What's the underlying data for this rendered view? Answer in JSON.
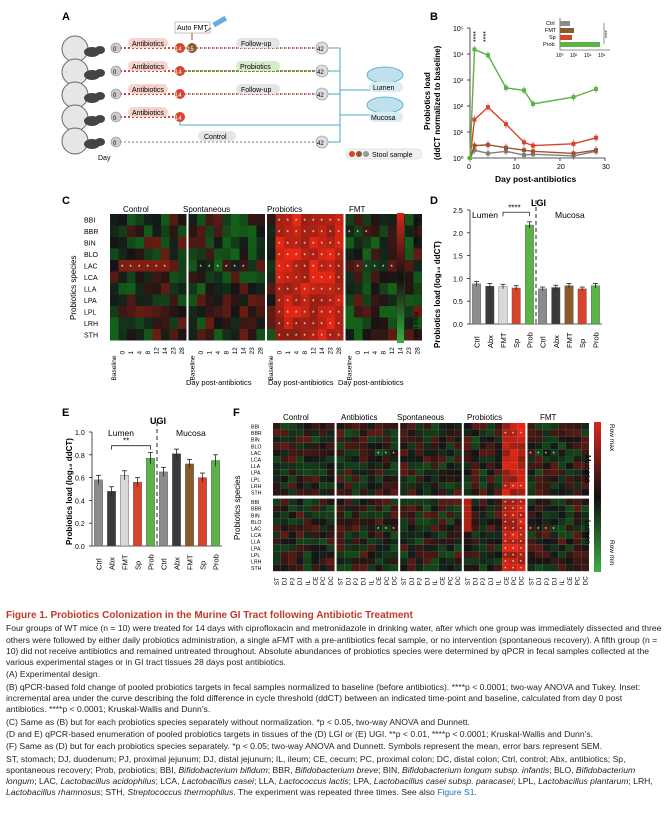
{
  "panels": {
    "A": {
      "label": "A",
      "auto_fmt": "Auto FMT",
      "antibiotics": "Antibiotics",
      "follow_up": "Follow-up",
      "probiotics": "Probiotics",
      "control": "Control",
      "day": "Day",
      "day_start": "0",
      "day_abx_end": "14",
      "day_fmt": "15",
      "day_end": "42",
      "lumen": "Lumen",
      "mucosa": "Mucosa",
      "stool_sample": "Stool sample"
    },
    "B": {
      "label": "B",
      "ylabel": "Probiotics load",
      "ylabel2": "(ddCT normalized to baseline)",
      "xlabel": "Day post-antibiotics",
      "yticks": [
        "10⁰",
        "10¹",
        "10²",
        "10³",
        "10⁴",
        "10⁵"
      ],
      "xticks": [
        "0",
        "10",
        "20",
        "30"
      ],
      "sig_a": "****",
      "sig_b": "****",
      "inset_labels": [
        "Ctrl",
        "FMT",
        "Sp",
        "Prob"
      ],
      "inset_xticks": [
        "10⁰",
        "10²",
        "10⁴",
        "10⁶"
      ],
      "inset_sig": "****"
    },
    "C": {
      "label": "C",
      "groups": [
        "Control",
        "Spontaneous",
        "Probiotics",
        "FMT"
      ],
      "species": [
        "BBI",
        "BBR",
        "BIN",
        "BLO",
        "LAC",
        "LCA",
        "LLA",
        "LPA",
        "LPL",
        "LRH",
        "STH"
      ],
      "ylabel": "Probiotics species",
      "baseline": "Baseline",
      "days": [
        "0",
        "1",
        "4",
        "8",
        "12",
        "14",
        "23",
        "28"
      ],
      "xlabel": "Day post-antibiotics",
      "row_max": "Row max",
      "row_min": "Row min"
    },
    "D": {
      "label": "D",
      "title": "LGI",
      "lumen": "Lumen",
      "mucosa": "Mucosa",
      "ylabel": "Probiotics load (log₁₀ ddCT)",
      "sig": "****",
      "yticks": [
        "0.0",
        "0.5",
        "1.0",
        "1.5",
        "2.0",
        "2.5"
      ],
      "categories": [
        "Ctrl",
        "Abx",
        "FMT",
        "Sp",
        "Prob",
        "Ctrl",
        "Abx",
        "FMT",
        "Sp",
        "Prob"
      ]
    },
    "E": {
      "label": "E",
      "title": "UGI",
      "lumen": "Lumen",
      "mucosa": "Mucosa",
      "ylabel": "Probiotics load (log₁₀ ddCT)",
      "sig": "**",
      "yticks": [
        "0.0",
        "0.2",
        "0.4",
        "0.6",
        "0.8",
        "1.0"
      ],
      "categories": [
        "Ctrl",
        "Abx",
        "FMT",
        "Sp",
        "Prob",
        "Ctrl",
        "Abx",
        "FMT",
        "Sp",
        "Prob"
      ]
    },
    "F": {
      "label": "F",
      "groups": [
        "Control",
        "Antibiotics",
        "Spontaneous",
        "Probiotics",
        "FMT"
      ],
      "species": [
        "BBI",
        "BBR",
        "BIN",
        "BLO",
        "LAC",
        "LCA",
        "LLA",
        "LPA",
        "LPL",
        "LRH",
        "STH"
      ],
      "ylabel": "Probiotics species",
      "tissues": [
        "ST",
        "DJ",
        "PJ",
        "DJ",
        "IL",
        "CE",
        "PC",
        "DC"
      ],
      "mucosa": "Mucosa",
      "lumen": "Lumen",
      "row_max": "Row max",
      "row_min": "Row min"
    }
  },
  "chart_data": [
    {
      "panel": "B",
      "type": "line",
      "title": "",
      "xlabel": "Day post-antibiotics",
      "ylabel": "Probiotics load (ddCT normalized to baseline)",
      "yscale": "log",
      "xlim": [
        0,
        30
      ],
      "ylim": [
        1,
        100000
      ],
      "x": [
        0,
        1,
        4,
        8,
        12,
        14,
        23,
        28
      ],
      "series": [
        {
          "name": "Probiotics",
          "color": "#5bb246",
          "values": [
            1,
            15000,
            9000,
            500,
            400,
            120,
            220,
            450
          ]
        },
        {
          "name": "FMT",
          "color": "#d9432b",
          "values": [
            1,
            30,
            90,
            20,
            4,
            3,
            3.5,
            6
          ]
        },
        {
          "name": "Spontaneous",
          "color": "#a0522d",
          "values": [
            1,
            3,
            3.2,
            2.5,
            2,
            1.8,
            1.5,
            2
          ]
        },
        {
          "name": "Control",
          "color": "#7f7f7f",
          "values": [
            1,
            2,
            1.5,
            1.8,
            1.3,
            1.4,
            1.2,
            1.8
          ]
        }
      ]
    },
    {
      "panel": "D",
      "type": "bar",
      "title": "LGI",
      "ylabel": "Probiotics load (log10 ddCT)",
      "ylim": [
        0,
        2.5
      ],
      "categories": [
        "Ctrl",
        "Abx",
        "FMT",
        "Sp",
        "Prob",
        "Ctrl",
        "Abx",
        "FMT",
        "Sp",
        "Prob"
      ],
      "values": [
        0.88,
        0.83,
        0.82,
        0.79,
        2.17,
        0.77,
        0.8,
        0.84,
        0.77,
        0.84
      ],
      "errors": [
        0.05,
        0.06,
        0.05,
        0.05,
        0.07,
        0.04,
        0.05,
        0.05,
        0.04,
        0.05
      ],
      "colors": [
        "#8c8c8c",
        "#3a3a3a",
        "#d9d9d9",
        "#d9432b",
        "#5bb246",
        "#8c8c8c",
        "#3a3a3a",
        "#8b5a2b",
        "#d9432b",
        "#5bb246"
      ]
    },
    {
      "panel": "E",
      "type": "bar",
      "title": "UGI",
      "ylabel": "Probiotics load (log10 ddCT)",
      "ylim": [
        0,
        1.0
      ],
      "categories": [
        "Ctrl",
        "Abx",
        "FMT",
        "Sp",
        "Prob",
        "Ctrl",
        "Abx",
        "FMT",
        "Sp",
        "Prob"
      ],
      "values": [
        0.58,
        0.48,
        0.62,
        0.56,
        0.77,
        0.65,
        0.81,
        0.72,
        0.6,
        0.75
      ],
      "errors": [
        0.04,
        0.04,
        0.04,
        0.04,
        0.05,
        0.04,
        0.04,
        0.04,
        0.04,
        0.05
      ],
      "colors": [
        "#8c8c8c",
        "#3a3a3a",
        "#d9d9d9",
        "#d9432b",
        "#5bb246",
        "#8c8c8c",
        "#3a3a3a",
        "#8b5a2b",
        "#d9432b",
        "#5bb246"
      ]
    }
  ],
  "caption": {
    "title": "Figure 1.  Probiotics Colonization in the Murine GI Tract following Antibiotic Treatment",
    "p1": "Four groups of WT mice (n = 10) were treated for 14 days with ciprofloxacin and metronidazole in drinking water, after which one group was immediately dissected and three others were followed by either daily probiotics administration, a single aFMT with a pre-antibiotics fecal sample, or no intervention (spontaneous recovery). A fifth group (n = 10) did not receive antibiotics and remained untreated throughout. Absolute abundances of probiotics species were determined by qPCR in fecal samples collected at the various experimental stages or in GI tract tissues 28 days post antibiotics.",
    "pA": "(A) Experimental design.",
    "pB": "(B) qPCR-based fold change of pooled probiotics targets in fecal samples normalized to baseline (before antibiotics). ****p < 0.0001; two-way ANOVA and Tukey. Inset: incremental area under the curve describing the fold difference in cycle threshold (ddCT) between an indicated time-point and baseline, calculated from day 0 post antibiotics. ****p < 0.0001; Kruskal-Wallis and Dunn’s.",
    "pC": "(C) Same as (B) but for each probiotics species separately without normalization. *p < 0.05, two-way ANOVA and Dunnett.",
    "pD": "(D and E) qPCR-based enumeration of pooled probiotics targets in tissues of the (D) LGI or (E) UGI. **p < 0.01, ****p < 0.0001; Kruskal-Wallis and Dunn’s.",
    "pF": "(F) Same as (D) but for each probiotics species separately. *p < 0.05; two-way ANOVA and Dunnett. Symbols represent the mean, error bars represent SEM.",
    "abbr_a": "ST, stomach; DJ, duodenum; PJ, proximal jejunum; DJ, distal jejunum; IL, ileum; CE, cecum; PC, proximal colon; DC, distal colon; Ctrl, control; Abx, antibiotics; Sp, spontaneous recovery; Prob, probiotics; BBI,",
    "abbr_b": "Bifidobacterium bifidum",
    "abbr_c": "; BBR,",
    "abbr_d": "Bifidobacterium breve",
    "abbr_e": "; BIN,",
    "abbr_f": "Bifidobacterium longum subsp. infantis",
    "abbr_g": "; BLO,",
    "abbr_h": "Bifidobacterium longum",
    "abbr_i": "; LAC,",
    "abbr_j": "Lactobacillus acidophilus",
    "abbr_k": "; LCA,",
    "abbr_l": "Lactobacillus casei",
    "abbr_m": "; LLA,",
    "abbr_n": "Lactococcus lactis",
    "abbr_o": "; LPA,",
    "abbr_p": "Lactobacillus casei subsp. paracasei",
    "abbr_q": "; LPL,",
    "abbr_r": "Lactobacillus plantarum",
    "abbr_s": "; LRH,",
    "abbr_t": "Lactobacillus rhamnosus",
    "abbr_u": "; STH,",
    "abbr_v": "Streptococcus thermophilus",
    "abbr_w": ". The experiment was repeated three times. See also",
    "link": "Figure S1",
    "end": "."
  },
  "colors": {
    "red": "#d9432b",
    "green": "#5bb246",
    "gray": "#8c8c8c",
    "brown": "#8b5a2b",
    "title_red": "#c0392b",
    "link": "#1a75bc"
  }
}
